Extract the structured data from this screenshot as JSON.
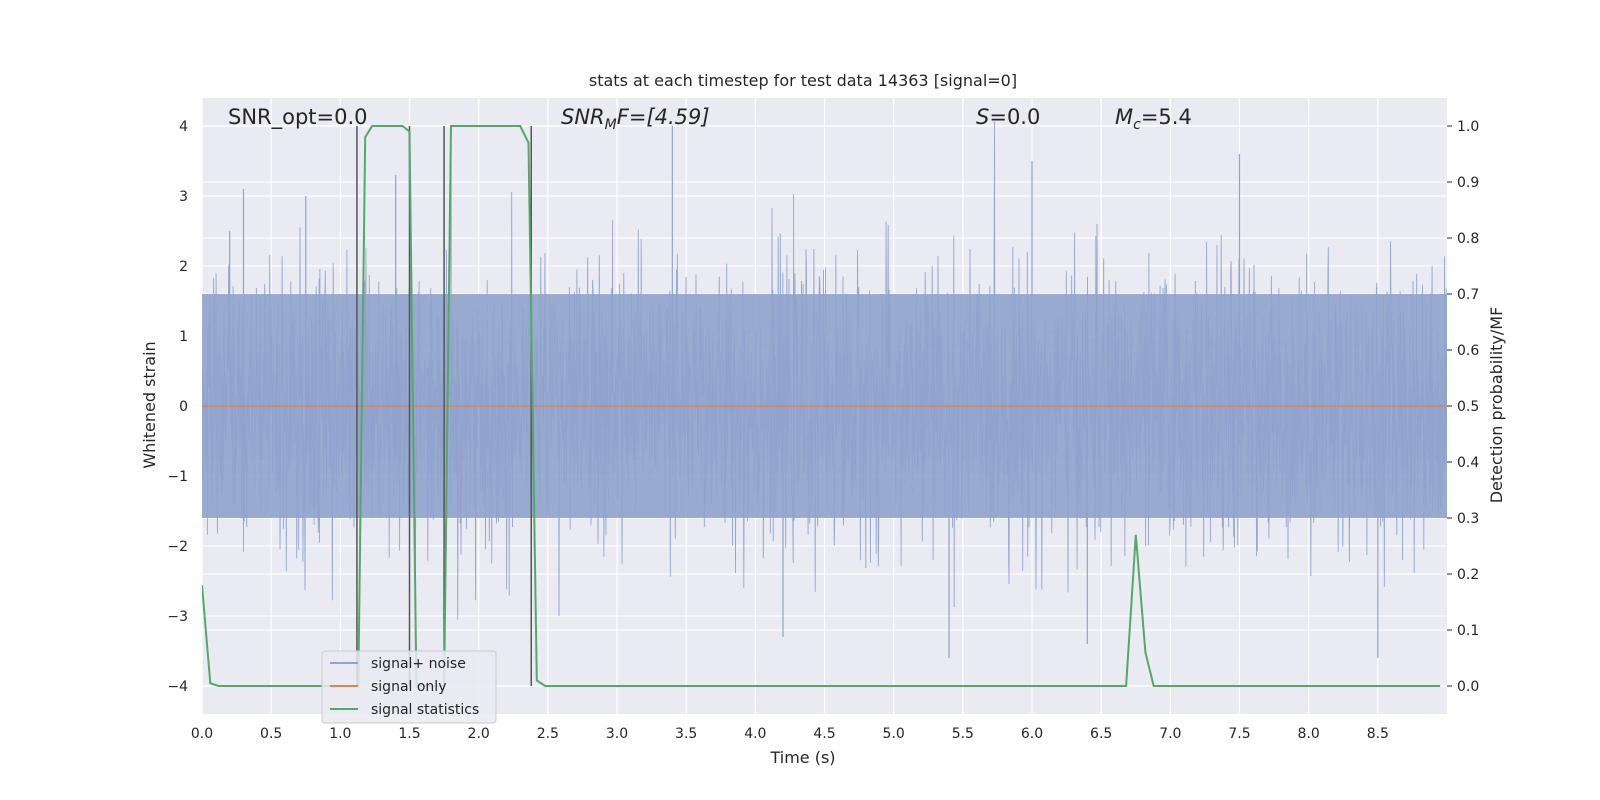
{
  "chart_data": {
    "type": "line",
    "title": "stats at each timestep for test data 14363 [signal=0]",
    "xlabel": "Time (s)",
    "ylabel_left": "Whitened strain",
    "ylabel_right": "Detection probability/MF",
    "xlim": [
      0.0,
      9.0
    ],
    "ylim_left": [
      -4.4,
      4.4
    ],
    "ylim_right": [
      -0.05,
      1.05
    ],
    "x_ticks": [
      "0.0",
      "0.5",
      "1.0",
      "1.5",
      "2.0",
      "2.5",
      "3.0",
      "3.5",
      "4.0",
      "4.5",
      "5.0",
      "5.5",
      "6.0",
      "6.5",
      "7.0",
      "7.5",
      "8.0",
      "8.5"
    ],
    "y_left_ticks": [
      "4",
      "3",
      "2",
      "1",
      "0",
      "−1",
      "−2",
      "−3",
      "−4"
    ],
    "y_right_ticks": [
      "1.0",
      "0.9",
      "0.8",
      "0.7",
      "0.6",
      "0.5",
      "0.4",
      "0.3",
      "0.2",
      "0.1",
      "0.0"
    ],
    "grid": true,
    "annotations": {
      "snr_opt": "SNR_opt=0.0",
      "snr_mf_main": "SNR",
      "snr_mf_sub": "M",
      "snr_mf_rest": "F=[4.59]",
      "s_main": "S",
      "s_rest": "=0.0",
      "mc_main": "M",
      "mc_sub": "c",
      "mc_rest": "=5.4"
    },
    "legend": {
      "placement": "lower-left",
      "entries": [
        "signal+ noise",
        "signal only",
        "signal statistics"
      ]
    },
    "series": [
      {
        "name": "signal+ noise",
        "axis": "left",
        "color": "#8fa3cc",
        "kind": "noise",
        "typical_envelope": [
          -1.6,
          1.6
        ],
        "sample_peaks": [
          {
            "x": 0.2,
            "y": 2.5
          },
          {
            "x": 0.3,
            "y": 3.1
          },
          {
            "x": 0.75,
            "y": 3.0
          },
          {
            "x": 1.4,
            "y": 3.3
          },
          {
            "x": 1.8,
            "y": 3.5
          },
          {
            "x": 3.4,
            "y": 4.0
          },
          {
            "x": 6.0,
            "y": 3.5
          },
          {
            "x": 7.5,
            "y": 3.6
          },
          {
            "x": 5.4,
            "y": -3.6
          },
          {
            "x": 8.5,
            "y": -3.6
          },
          {
            "x": 6.4,
            "y": -3.4
          },
          {
            "x": 4.2,
            "y": -3.3
          }
        ]
      },
      {
        "name": "signal only",
        "axis": "left",
        "color": "#dd8452",
        "x": [
          0.0,
          9.0
        ],
        "y": [
          0.0,
          0.0
        ]
      },
      {
        "name": "signal statistics",
        "axis": "right",
        "color": "#55a868",
        "x": [
          0.0,
          0.06,
          0.12,
          1.13,
          1.18,
          1.23,
          1.45,
          1.5,
          1.55,
          1.7,
          1.75,
          1.8,
          2.3,
          2.36,
          2.42,
          2.48,
          6.68,
          6.75,
          6.82,
          6.88,
          8.95
        ],
        "y": [
          0.18,
          0.005,
          0.0,
          0.0,
          0.98,
          1.0,
          1.0,
          0.99,
          0.0,
          0.0,
          0.0,
          1.0,
          1.0,
          0.97,
          0.01,
          0.0,
          0.0,
          0.27,
          0.06,
          0.0,
          0.0
        ]
      }
    ],
    "vertical_markers": [
      1.12,
      1.5,
      1.75,
      2.38
    ]
  }
}
